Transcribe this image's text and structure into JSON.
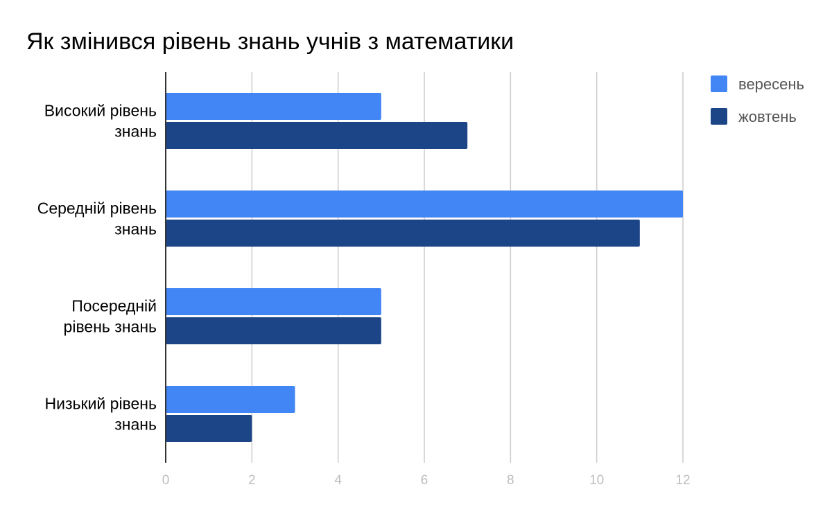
{
  "chart_data": {
    "type": "bar",
    "orientation": "horizontal",
    "title": "Як змінився рівень знань учнів з математики",
    "categories": [
      [
        "Високий рівень",
        "знань"
      ],
      [
        "Середній рівень",
        "знань"
      ],
      [
        "Посередній",
        "рівень знань"
      ],
      [
        "Низький рівень",
        "знань"
      ]
    ],
    "series": [
      {
        "name": "вересень",
        "color": "#4285f4",
        "values": [
          5,
          12,
          5,
          3
        ]
      },
      {
        "name": "жовтень",
        "color": "#1c4587",
        "values": [
          7,
          11,
          5,
          2
        ]
      }
    ],
    "xlim": [
      0,
      12
    ],
    "xticks": [
      0,
      2,
      4,
      6,
      8,
      10,
      12
    ],
    "grid": true,
    "legend_position": "top-right",
    "xlabel": "",
    "ylabel": ""
  }
}
